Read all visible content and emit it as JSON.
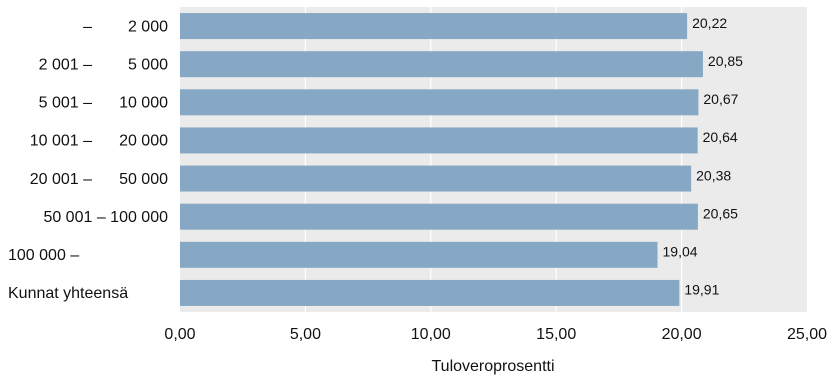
{
  "chart_data": {
    "type": "bar",
    "orientation": "horizontal",
    "categories": [
      [
        "–",
        "2 000"
      ],
      [
        "2 001 –",
        "5 000"
      ],
      [
        "5 001 –",
        "10 000"
      ],
      [
        "10 001 –",
        "20 000"
      ],
      [
        "20 001 –",
        "50 000"
      ],
      [
        "50 001 – 100 000",
        ""
      ],
      [
        "100 000 –",
        ""
      ],
      [
        "Kunnat yhteensä",
        ""
      ]
    ],
    "values": [
      20.22,
      20.85,
      20.67,
      20.64,
      20.38,
      20.65,
      19.04,
      19.91
    ],
    "value_labels": [
      "20,22",
      "20,85",
      "20,67",
      "20,64",
      "20,38",
      "20,65",
      "19,04",
      "19,91"
    ],
    "xlim": [
      0,
      25
    ],
    "xticks": [
      0,
      5,
      10,
      15,
      20,
      25
    ],
    "xtick_labels": [
      "0,00",
      "5,00",
      "10,00",
      "15,00",
      "20,00",
      "25,00"
    ],
    "xlabel": "Tuloveroprosentti",
    "grid": true,
    "colors": {
      "bar": "#86a8c4",
      "plot_background": "#ebebeb",
      "gridline": "#ffffff"
    }
  }
}
